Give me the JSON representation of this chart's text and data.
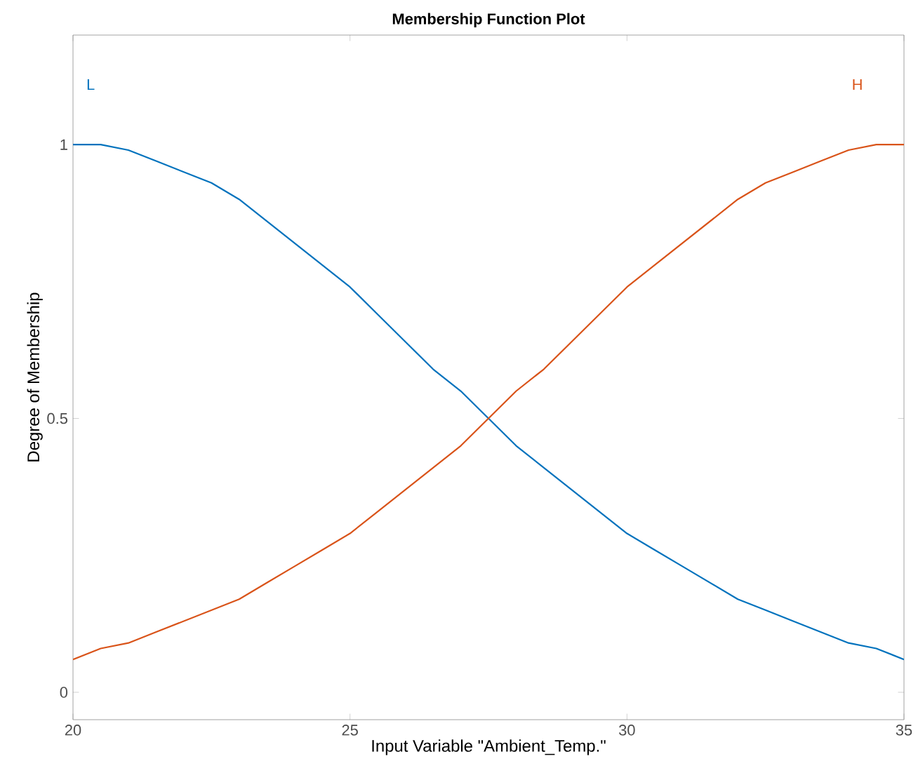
{
  "chart_data": {
    "type": "line",
    "title": "Membership Function Plot",
    "xlabel": "Input Variable \"Ambient_Temp.\"",
    "ylabel": "Degree of Membership",
    "x": [
      20,
      20.5,
      21,
      21.5,
      22,
      22.5,
      23,
      23.5,
      24,
      24.5,
      25,
      25.5,
      26,
      26.5,
      27,
      27.5,
      28,
      28.5,
      29,
      29.5,
      30,
      30.5,
      31,
      31.5,
      32,
      32.5,
      33,
      33.5,
      34,
      34.5,
      35
    ],
    "series": [
      {
        "name": "L",
        "color": "#0072bd",
        "values": [
          1,
          1.0,
          0.99,
          0.97,
          0.95,
          0.93,
          0.9,
          0.86,
          0.82,
          0.78,
          0.74,
          0.69,
          0.64,
          0.59,
          0.55,
          0.5,
          0.45,
          0.41,
          0.37,
          0.33,
          0.29,
          0.26,
          0.23,
          0.2,
          0.17,
          0.15,
          0.13,
          0.11,
          0.09,
          0.08,
          0.06
        ]
      },
      {
        "name": "H",
        "color": "#d95319",
        "values": [
          0.06,
          0.08,
          0.09,
          0.11,
          0.13,
          0.15,
          0.17,
          0.2,
          0.23,
          0.26,
          0.29,
          0.33,
          0.37,
          0.41,
          0.45,
          0.5,
          0.55,
          0.59,
          0.64,
          0.69,
          0.74,
          0.78,
          0.82,
          0.86,
          0.9,
          0.93,
          0.95,
          0.97,
          0.99,
          1.0,
          1
        ]
      }
    ],
    "xlim": [
      20,
      35
    ],
    "ylim": [
      -0.05,
      1.2
    ],
    "xticks": [
      20,
      25,
      30,
      35
    ],
    "yticks": [
      0,
      0.5,
      1
    ]
  }
}
